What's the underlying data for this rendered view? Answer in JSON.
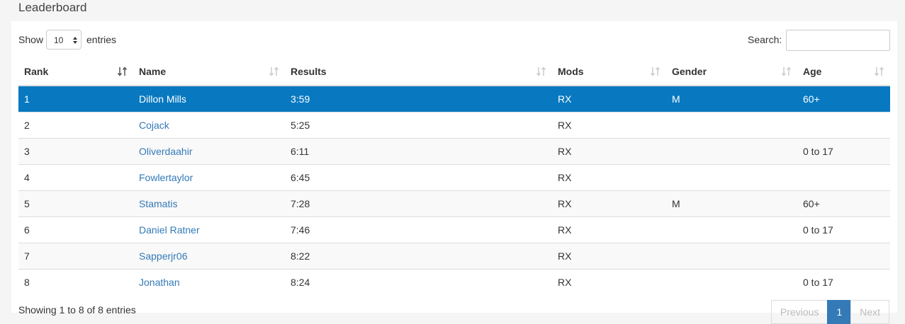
{
  "header": {
    "title": "Leaderboard"
  },
  "controls": {
    "show_label": "Show",
    "page_size": "10",
    "entries_label": "entries",
    "search_label": "Search:"
  },
  "table": {
    "columns": [
      "Rank",
      "Name",
      "Results",
      "Mods",
      "Gender",
      "Age"
    ],
    "rows": [
      [
        "1",
        "Dillon Mills",
        "3:59",
        "RX",
        "M",
        "60+"
      ],
      [
        "2",
        "Cojack",
        "5:25",
        "RX",
        null,
        null
      ],
      [
        "3",
        "Oliverdaahir",
        "6:11",
        "RX",
        null,
        "0 to 17"
      ],
      [
        "4",
        "Fowlertaylor",
        "6:45",
        "RX",
        null,
        null
      ],
      [
        "5",
        "Stamatis",
        "7:28",
        "RX",
        "M",
        "60+"
      ],
      [
        "6",
        "Daniel Ratner",
        "7:46",
        "RX",
        null,
        "0 to 17"
      ],
      [
        "7",
        "Sapperjr06",
        "8:22",
        "RX",
        null,
        null
      ],
      [
        "8",
        "Jonathan",
        "8:24",
        "RX",
        null,
        "0 to 17"
      ]
    ]
  },
  "footer": {
    "info": "Showing 1 to 8 of 8 entries",
    "pagination": [
      "Previous",
      "1",
      "Next"
    ]
  }
}
